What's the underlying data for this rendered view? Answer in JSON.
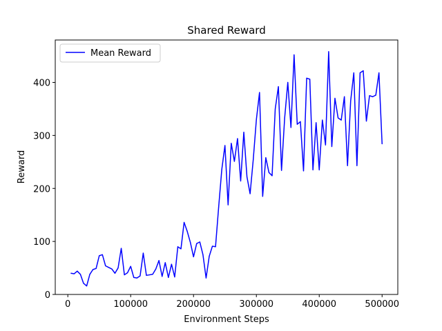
{
  "chart_data": {
    "type": "line",
    "title": "Shared Reward",
    "xlabel": "Environment Steps",
    "ylabel": "Reward",
    "xlim": [
      -20000,
      525000
    ],
    "ylim": [
      0,
      480
    ],
    "xticks": [
      0,
      100000,
      200000,
      300000,
      400000,
      500000
    ],
    "xtick_labels": [
      "0",
      "100000",
      "200000",
      "300000",
      "400000",
      "500000"
    ],
    "yticks": [
      0,
      100,
      200,
      300,
      400
    ],
    "ytick_labels": [
      "0",
      "100",
      "200",
      "300",
      "400"
    ],
    "grid": false,
    "legend_position": "top-left",
    "series": [
      {
        "name": "Mean Reward",
        "color": "#0000ff",
        "x": [
          5000,
          10000,
          15000,
          20000,
          25000,
          30000,
          35000,
          40000,
          45000,
          50000,
          55000,
          60000,
          65000,
          70000,
          75000,
          80000,
          85000,
          90000,
          95000,
          100000,
          105000,
          110000,
          115000,
          120000,
          125000,
          130000,
          135000,
          140000,
          145000,
          150000,
          155000,
          160000,
          165000,
          170000,
          175000,
          180000,
          185000,
          190000,
          195000,
          200000,
          205000,
          210000,
          215000,
          220000,
          225000,
          230000,
          235000,
          240000,
          245000,
          250000,
          255000,
          260000,
          265000,
          270000,
          275000,
          280000,
          285000,
          290000,
          295000,
          300000,
          305000,
          310000,
          315000,
          320000,
          325000,
          330000,
          335000,
          340000,
          345000,
          350000,
          355000,
          360000,
          365000,
          370000,
          375000,
          380000,
          385000,
          390000,
          395000,
          400000,
          405000,
          410000,
          415000,
          420000,
          425000,
          430000,
          435000,
          440000,
          445000,
          450000,
          455000,
          460000,
          465000,
          470000,
          475000,
          480000,
          485000,
          490000,
          495000,
          500000
        ],
        "values": [
          40,
          39,
          44,
          38,
          21,
          16,
          38,
          47,
          49,
          73,
          75,
          54,
          51,
          48,
          40,
          50,
          87,
          37,
          41,
          53,
          32,
          31,
          35,
          78,
          36,
          37,
          38,
          48,
          64,
          34,
          60,
          32,
          57,
          33,
          90,
          86,
          136,
          119,
          98,
          71,
          96,
          99,
          75,
          31,
          72,
          91,
          90,
          165,
          236,
          281,
          169,
          285,
          251,
          294,
          214,
          306,
          222,
          190,
          254,
          330,
          381,
          185,
          258,
          230,
          224,
          350,
          392,
          234,
          333,
          400,
          315,
          452,
          321,
          326,
          233,
          408,
          406,
          235,
          324,
          235,
          329,
          282,
          458,
          279,
          370,
          333,
          329,
          373,
          243,
          365,
          418,
          243,
          418,
          422,
          327,
          375,
          373,
          376,
          418,
          284
        ]
      }
    ]
  }
}
